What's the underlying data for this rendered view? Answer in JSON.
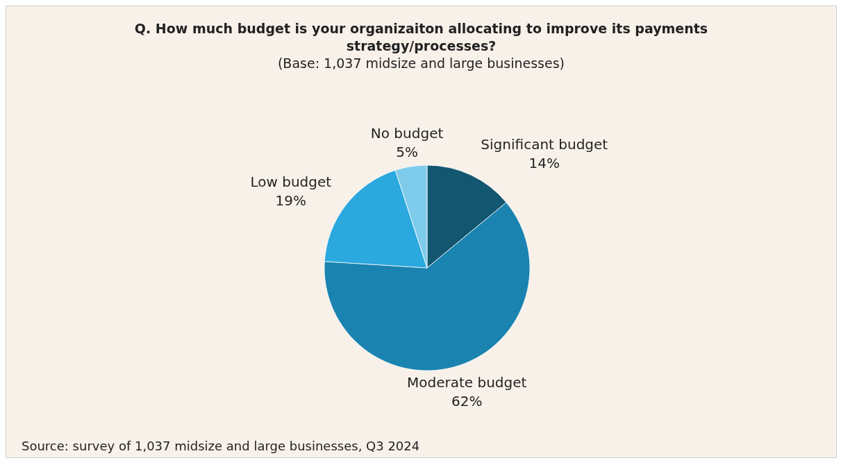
{
  "chart_data": {
    "type": "pie",
    "title": "Q. How much budget is your organizaiton allocating to improve its payments strategy/processes?",
    "subtitle": "(Base: 1,037 midsize and large businesses)",
    "categories": [
      "Significant budget",
      "Moderate budget",
      "Low budget",
      "No budget"
    ],
    "values": [
      14,
      62,
      19,
      5
    ],
    "colors": [
      "#12566f",
      "#1a83b0",
      "#2ba8de",
      "#7fcbeb"
    ],
    "value_labels": [
      "14%",
      "62%",
      "19%",
      "5%"
    ],
    "annotations": [
      "Source: survey of 1,037 midsize and large businesses, Q3 2024"
    ]
  }
}
